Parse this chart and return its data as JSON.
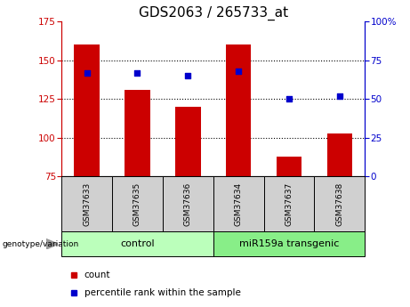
{
  "title": "GDS2063 / 265733_at",
  "samples": [
    "GSM37633",
    "GSM37635",
    "GSM37636",
    "GSM37634",
    "GSM37637",
    "GSM37638"
  ],
  "count_values": [
    160,
    131,
    120,
    160,
    88,
    103
  ],
  "percentile_values": [
    67,
    67,
    65,
    68,
    50,
    52
  ],
  "ylim_left": [
    75,
    175
  ],
  "ylim_right": [
    0,
    100
  ],
  "yticks_left": [
    75,
    100,
    125,
    150,
    175
  ],
  "yticks_right": [
    0,
    25,
    50,
    75,
    100
  ],
  "bar_color": "#cc0000",
  "dot_color": "#0000cc",
  "bar_bottom": 75,
  "groups": [
    {
      "label": "control",
      "indices": [
        0,
        1,
        2
      ],
      "color": "#bbffbb"
    },
    {
      "label": "miR159a transgenic",
      "indices": [
        3,
        4,
        5
      ],
      "color": "#88ee88"
    }
  ],
  "group_label_prefix": "genotype/variation",
  "legend_count": "count",
  "legend_percentile": "percentile rank within the sample",
  "title_fontsize": 11,
  "axis_label_color_left": "#cc0000",
  "axis_label_color_right": "#0000cc",
  "sample_box_color": "#d0d0d0",
  "grid_style": "dotted",
  "grid_linewidth": 0.8,
  "grid_levels": [
    100,
    125,
    150
  ],
  "bar_width": 0.5
}
